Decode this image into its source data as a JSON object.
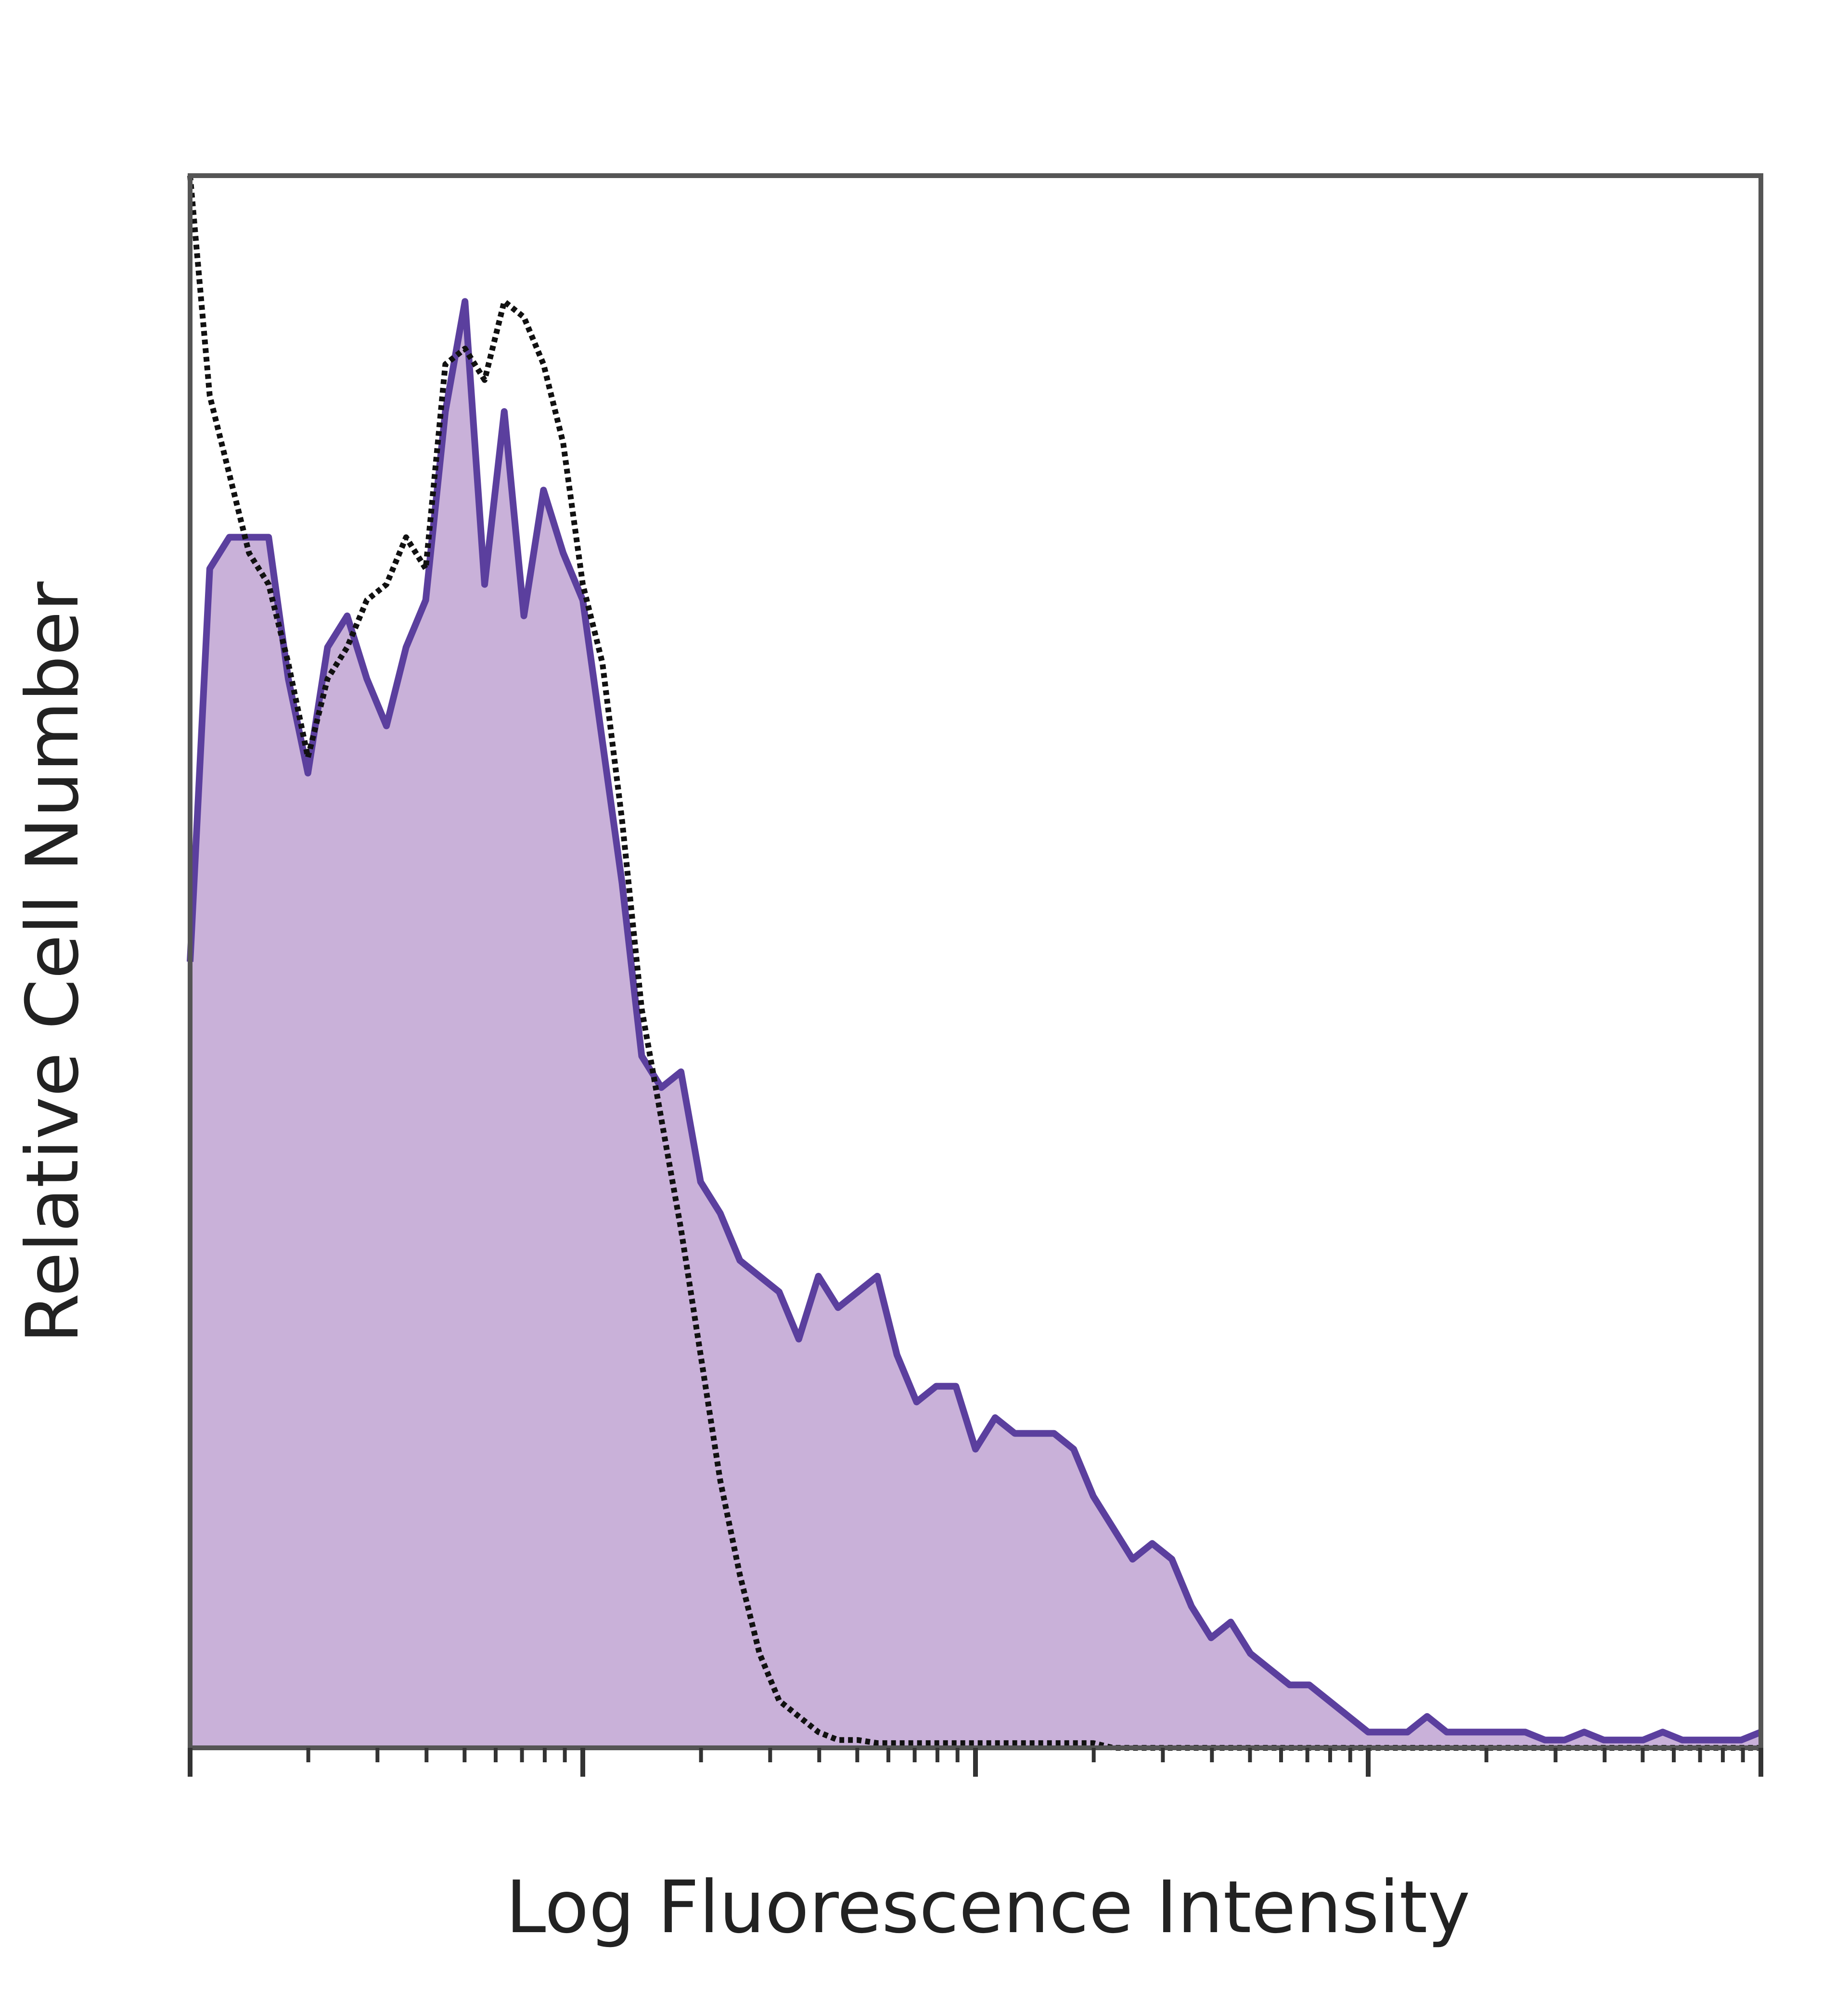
{
  "chart_data": {
    "type": "area",
    "xlabel": "Log Fluorescence Intensity",
    "ylabel": "Relative Cell Number",
    "x": [
      0,
      0.05,
      0.1,
      0.15,
      0.2,
      0.25,
      0.3,
      0.35,
      0.4,
      0.45,
      0.5,
      0.55,
      0.6,
      0.65,
      0.7,
      0.75,
      0.8,
      0.85,
      0.9,
      0.95,
      1,
      1.05,
      1.1,
      1.15,
      1.2,
      1.25,
      1.3,
      1.35,
      1.4,
      1.45,
      1.5,
      1.55,
      1.6,
      1.65,
      1.7,
      1.75,
      1.8,
      1.85,
      1.9,
      1.95,
      2,
      2.05,
      2.1,
      2.15,
      2.2,
      2.25,
      2.3,
      2.35,
      2.4,
      2.45,
      2.5,
      2.55,
      2.6,
      2.65,
      2.7,
      2.75,
      2.8,
      2.85,
      2.9,
      2.95,
      3,
      3.05,
      3.1,
      3.15,
      3.2,
      3.25,
      3.3,
      3.35,
      3.4,
      3.45,
      3.5,
      3.55,
      3.6,
      3.65,
      3.7,
      3.75,
      3.8,
      3.85,
      3.9,
      3.95,
      4
    ],
    "series": [
      {
        "color": "#5b3f9e",
        "fill": "#c9b1d9",
        "line_style": "solid",
        "values": [
          50,
          75,
          77,
          77,
          77,
          68,
          62,
          70,
          72,
          68,
          65,
          70,
          73,
          85,
          92,
          74,
          85,
          72,
          80,
          76,
          73,
          64,
          55,
          44,
          42,
          43,
          36,
          34,
          31,
          30,
          29,
          26,
          30,
          28,
          29,
          30,
          25,
          22,
          23,
          23,
          19,
          21,
          20,
          20,
          20,
          19,
          16,
          14,
          12,
          13,
          12,
          9,
          7,
          8,
          6,
          5,
          4,
          4,
          3,
          2,
          1,
          1,
          1,
          2,
          1,
          1,
          1,
          1,
          1,
          0.5,
          0.5,
          1,
          0.5,
          0.5,
          0.5,
          1,
          0.5,
          0.5,
          0.5,
          0.5,
          1
        ]
      },
      {
        "color": "#111111",
        "line_style": "dotted",
        "values": [
          100,
          86,
          81,
          76,
          74,
          69,
          63,
          68,
          70,
          73,
          74,
          77,
          75,
          88,
          89,
          87,
          92,
          91,
          88,
          83,
          74,
          69,
          59,
          47,
          40,
          33,
          25,
          17,
          11,
          6,
          3,
          2,
          1,
          0.5,
          0.5,
          0.3,
          0.3,
          0.3,
          0.3,
          0.3,
          0.3,
          0.3,
          0.3,
          0.3,
          0.3,
          0.3,
          0.3,
          0,
          0,
          0,
          0,
          0,
          0,
          0,
          0,
          0,
          0,
          0,
          0,
          0,
          0,
          0,
          0,
          0,
          0,
          0,
          0,
          0,
          0,
          0,
          0,
          0,
          0,
          0,
          0,
          0,
          0,
          0,
          0,
          0,
          0
        ]
      }
    ],
    "xlim": [
      0,
      4
    ],
    "ylim": [
      0,
      100
    ],
    "xticks": [
      0,
      1,
      2,
      3,
      4
    ]
  }
}
